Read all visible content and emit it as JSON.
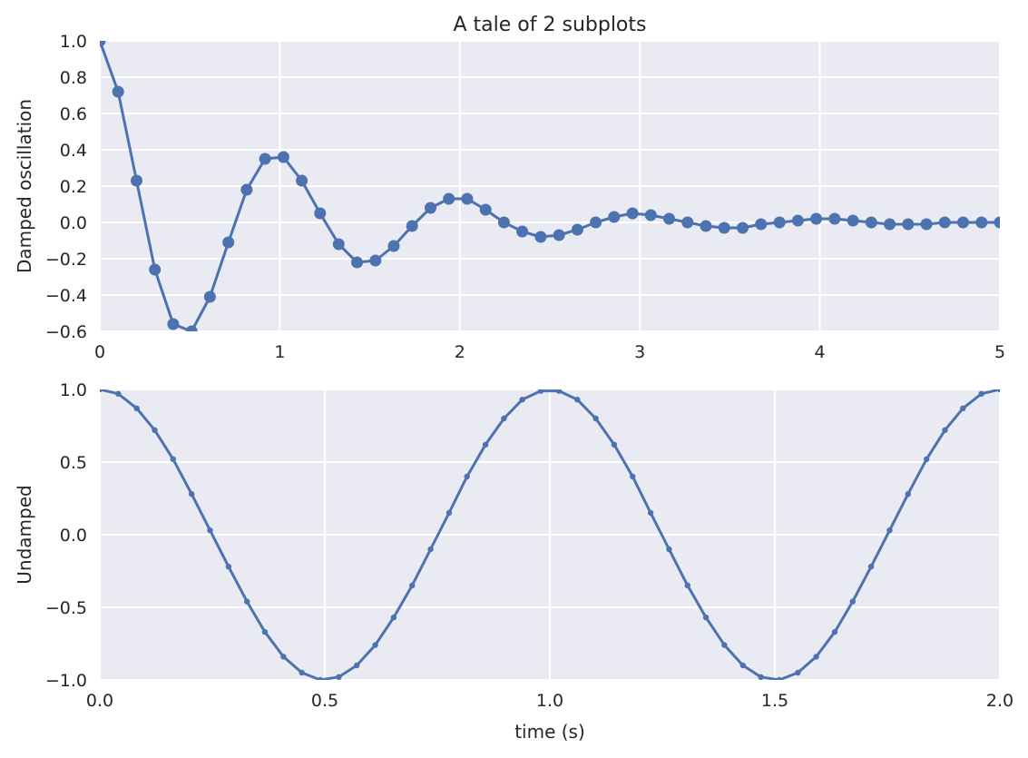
{
  "chart_data": [
    {
      "type": "line",
      "title": "A tale of 2 subplots",
      "xlabel": "",
      "ylabel": "Damped oscillation",
      "xlim": [
        0,
        5
      ],
      "ylim": [
        -0.6,
        1.0
      ],
      "xticks": [
        0,
        1,
        2,
        3,
        4,
        5
      ],
      "xtick_labels": [
        "0",
        "1",
        "2",
        "3",
        "4",
        "5"
      ],
      "yticks": [
        -0.6,
        -0.4,
        -0.2,
        0.0,
        0.2,
        0.4,
        0.6,
        0.8,
        1.0
      ],
      "ytick_labels": [
        "−0.6",
        "−0.4",
        "−0.2",
        "0.0",
        "0.2",
        "0.4",
        "0.6",
        "0.8",
        "1.0"
      ],
      "grid": true,
      "marker": "large-circle",
      "color": "#4c72b0",
      "background": "#eaeaf2",
      "x": [
        0.0,
        0.102,
        0.204,
        0.306,
        0.408,
        0.51,
        0.612,
        0.714,
        0.816,
        0.918,
        1.02,
        1.122,
        1.224,
        1.327,
        1.429,
        1.531,
        1.633,
        1.735,
        1.837,
        1.939,
        2.041,
        2.143,
        2.245,
        2.347,
        2.449,
        2.551,
        2.653,
        2.755,
        2.857,
        2.959,
        3.061,
        3.163,
        3.265,
        3.367,
        3.469,
        3.571,
        3.673,
        3.776,
        3.878,
        3.98,
        4.082,
        4.184,
        4.286,
        4.388,
        4.49,
        4.592,
        4.694,
        4.796,
        4.898,
        5.0
      ],
      "y": [
        1.0,
        0.72,
        0.23,
        -0.26,
        -0.56,
        -0.6,
        -0.41,
        -0.11,
        0.18,
        0.35,
        0.36,
        0.23,
        0.05,
        -0.12,
        -0.22,
        -0.21,
        -0.13,
        -0.02,
        0.08,
        0.13,
        0.13,
        0.07,
        0.0,
        -0.05,
        -0.08,
        -0.07,
        -0.04,
        0.0,
        0.03,
        0.05,
        0.04,
        0.02,
        0.0,
        -0.02,
        -0.03,
        -0.03,
        -0.01,
        0.0,
        0.01,
        0.02,
        0.02,
        0.01,
        0.0,
        -0.01,
        -0.01,
        -0.01,
        0.0,
        0.0,
        0.0,
        0.0
      ]
    },
    {
      "type": "line",
      "title": "",
      "xlabel": "time (s)",
      "ylabel": "Undamped",
      "xlim": [
        0.0,
        2.0
      ],
      "ylim": [
        -1.0,
        1.0
      ],
      "xticks": [
        0.0,
        0.5,
        1.0,
        1.5,
        2.0
      ],
      "xtick_labels": [
        "0.0",
        "0.5",
        "1.0",
        "1.5",
        "2.0"
      ],
      "yticks": [
        -1.0,
        -0.5,
        0.0,
        0.5,
        1.0
      ],
      "ytick_labels": [
        "−1.0",
        "−0.5",
        "0.0",
        "0.5",
        "1.0"
      ],
      "grid": true,
      "marker": "small-dot",
      "color": "#4c72b0",
      "background": "#eaeaf2",
      "x": [
        0.0,
        0.041,
        0.082,
        0.122,
        0.163,
        0.204,
        0.245,
        0.286,
        0.327,
        0.367,
        0.408,
        0.449,
        0.49,
        0.531,
        0.571,
        0.612,
        0.653,
        0.694,
        0.735,
        0.776,
        0.816,
        0.857,
        0.898,
        0.939,
        0.98,
        1.02,
        1.061,
        1.102,
        1.143,
        1.184,
        1.224,
        1.265,
        1.306,
        1.347,
        1.388,
        1.429,
        1.469,
        1.51,
        1.551,
        1.592,
        1.633,
        1.673,
        1.714,
        1.755,
        1.796,
        1.837,
        1.878,
        1.918,
        1.959,
        2.0
      ],
      "y": [
        1.0,
        0.97,
        0.87,
        0.72,
        0.52,
        0.28,
        0.03,
        -0.22,
        -0.46,
        -0.67,
        -0.84,
        -0.95,
        -1.0,
        -0.98,
        -0.9,
        -0.76,
        -0.57,
        -0.35,
        -0.1,
        0.15,
        0.4,
        0.62,
        0.8,
        0.93,
        0.99,
        0.99,
        0.93,
        0.8,
        0.62,
        0.4,
        0.15,
        -0.1,
        -0.35,
        -0.57,
        -0.76,
        -0.9,
        -0.98,
        -1.0,
        -0.95,
        -0.84,
        -0.67,
        -0.46,
        -0.22,
        0.03,
        0.28,
        0.52,
        0.72,
        0.87,
        0.97,
        1.0
      ]
    }
  ]
}
